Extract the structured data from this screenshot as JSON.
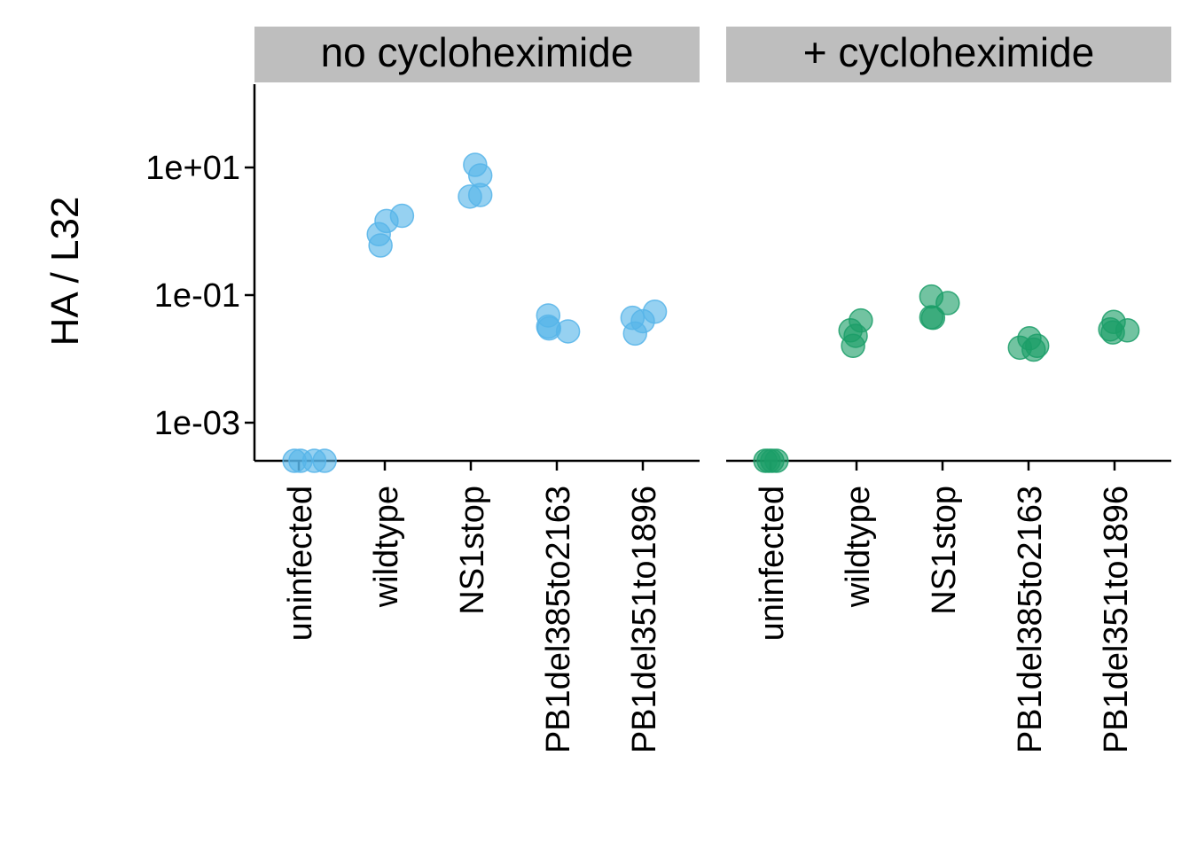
{
  "chart_data": {
    "type": "scatter",
    "ylabel": "HA / L32",
    "yscale": "log10",
    "ylim": [
      2e-05,
      25
    ],
    "yticks": [
      {
        "value": 10,
        "label": "1e+01"
      },
      {
        "value": 0.1,
        "label": "1e-01"
      },
      {
        "value": 0.001,
        "label": "1e-03"
      }
    ],
    "categories": [
      "uninfected",
      "wildtype",
      "NS1stop",
      "PB1del385to2163",
      "PB1del351to1896"
    ],
    "grid": false,
    "legend": "none",
    "panels": [
      {
        "title": "no cycloheximide",
        "color": "#56B4E9",
        "points": [
          {
            "category": "uninfected",
            "jitter": 0.3,
            "y": 0.0002
          },
          {
            "category": "uninfected",
            "jitter": 0.18,
            "y": 4.5e-05
          },
          {
            "category": "uninfected",
            "jitter": -0.05,
            "y": 2e-05
          },
          {
            "category": "uninfected",
            "jitter": 0.02,
            "y": 2e-05
          },
          {
            "category": "wildtype",
            "jitter": -0.07,
            "y": 0.9
          },
          {
            "category": "wildtype",
            "jitter": -0.05,
            "y": 0.6
          },
          {
            "category": "wildtype",
            "jitter": 0.02,
            "y": 1.45
          },
          {
            "category": "wildtype",
            "jitter": 0.2,
            "y": 1.75
          },
          {
            "category": "NS1stop",
            "jitter": 0.05,
            "y": 11
          },
          {
            "category": "NS1stop",
            "jitter": 0.11,
            "y": 7.5
          },
          {
            "category": "NS1stop",
            "jitter": 0.11,
            "y": 3.7
          },
          {
            "category": "NS1stop",
            "jitter": -0.01,
            "y": 3.5
          },
          {
            "category": "PB1del385to2163",
            "jitter": -0.1,
            "y": 0.048
          },
          {
            "category": "PB1del385to2163",
            "jitter": -0.1,
            "y": 0.032
          },
          {
            "category": "PB1del385to2163",
            "jitter": -0.09,
            "y": 0.03
          },
          {
            "category": "PB1del385to2163",
            "jitter": 0.13,
            "y": 0.027
          },
          {
            "category": "PB1del351to1896",
            "jitter": 0.14,
            "y": 0.055
          },
          {
            "category": "PB1del351to1896",
            "jitter": -0.12,
            "y": 0.044
          },
          {
            "category": "PB1del351to1896",
            "jitter": 0.0,
            "y": 0.039
          },
          {
            "category": "PB1del351to1896",
            "jitter": -0.09,
            "y": 0.025
          }
        ]
      },
      {
        "title": "+ cycloheximide",
        "color": "#1B9E68",
        "points": [
          {
            "category": "uninfected",
            "jitter": -0.06,
            "y": 2e-05
          },
          {
            "category": "uninfected",
            "jitter": -0.02,
            "y": 2e-05
          },
          {
            "category": "uninfected",
            "jitter": 0.02,
            "y": 2e-05
          },
          {
            "category": "uninfected",
            "jitter": 0.07,
            "y": 2e-05
          },
          {
            "category": "wildtype",
            "jitter": 0.05,
            "y": 0.04
          },
          {
            "category": "wildtype",
            "jitter": -0.07,
            "y": 0.028
          },
          {
            "category": "wildtype",
            "jitter": -0.01,
            "y": 0.023
          },
          {
            "category": "wildtype",
            "jitter": -0.04,
            "y": 0.016
          },
          {
            "category": "NS1stop",
            "jitter": -0.13,
            "y": 0.095
          },
          {
            "category": "NS1stop",
            "jitter": 0.06,
            "y": 0.075
          },
          {
            "category": "NS1stop",
            "jitter": -0.13,
            "y": 0.045
          },
          {
            "category": "NS1stop",
            "jitter": -0.11,
            "y": 0.044
          },
          {
            "category": "PB1del385to2163",
            "jitter": 0.01,
            "y": 0.021
          },
          {
            "category": "PB1del385to2163",
            "jitter": 0.1,
            "y": 0.016
          },
          {
            "category": "PB1del385to2163",
            "jitter": -0.1,
            "y": 0.015
          },
          {
            "category": "PB1del385to2163",
            "jitter": 0.06,
            "y": 0.014
          },
          {
            "category": "PB1del351to1896",
            "jitter": -0.01,
            "y": 0.038
          },
          {
            "category": "PB1del351to1896",
            "jitter": -0.05,
            "y": 0.029
          },
          {
            "category": "PB1del351to1896",
            "jitter": 0.15,
            "y": 0.028
          },
          {
            "category": "PB1del351to1896",
            "jitter": -0.02,
            "y": 0.026
          }
        ]
      }
    ]
  }
}
